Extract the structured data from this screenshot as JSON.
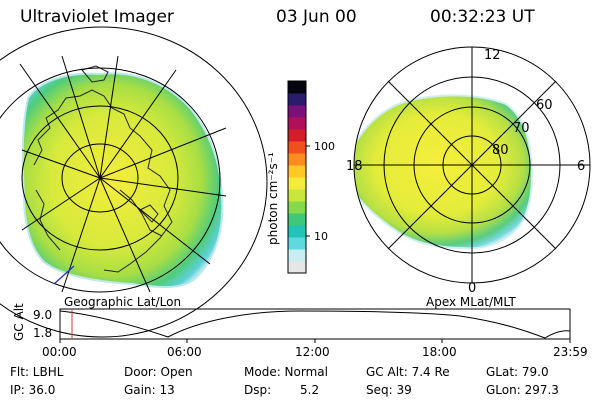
{
  "header": {
    "title": "Ultraviolet Imager",
    "date": "03 Jun 00",
    "time": "00:32:23 UT"
  },
  "left_panel": {
    "caption": "Geographic Lat/Lon"
  },
  "right_panel": {
    "caption": "Apex MLat/MLT",
    "mlt_labels": {
      "top": "12",
      "left": "18",
      "right": "6",
      "bottom": "0"
    },
    "mlat_labels": {
      "outer": "60",
      "mid": "70",
      "inner": "80"
    }
  },
  "colorbar": {
    "unit_label": "photon cm⁻²s⁻¹",
    "tick_100": "100",
    "tick_10": "10",
    "colors": [
      "#e6e6e6",
      "#c8eef2",
      "#60d8e0",
      "#22c4b8",
      "#3ec878",
      "#86d84c",
      "#c8e63c",
      "#f4ec3c",
      "#ffc828",
      "#ff8c1e",
      "#f0501e",
      "#d21e28",
      "#b0105a",
      "#7a1078",
      "#2a1c6c",
      "#050510"
    ]
  },
  "altitude_plot": {
    "ylabel": "GC Alt",
    "y_ticks": [
      "9.0",
      "1.8"
    ],
    "x_ticks": [
      "00:00",
      "06:00",
      "12:00",
      "18:00",
      "23:59"
    ]
  },
  "status": {
    "filter": "Flt: LBHL",
    "ip": "IP: 36.0",
    "door": "Door: Open",
    "gain": "Gain: 13",
    "mode": "Mode: Normal",
    "dsp_label": "Dsp:",
    "dsp_value": "5.2",
    "gc_alt": "GC Alt: 7.4 Re",
    "seq": "Seq: 39",
    "glat": "GLat: 79.0",
    "glon": "GLon: 297.3"
  }
}
